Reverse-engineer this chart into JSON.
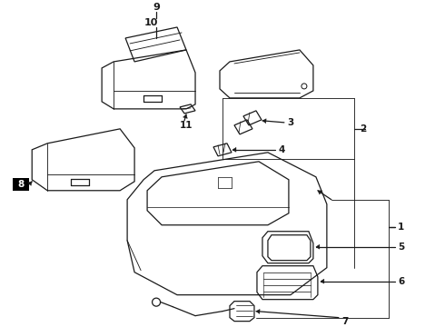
{
  "bg_color": "#ffffff",
  "line_color": "#1a1a1a",
  "lw": 0.9,
  "fig_width": 4.9,
  "fig_height": 3.6,
  "dpi": 100
}
